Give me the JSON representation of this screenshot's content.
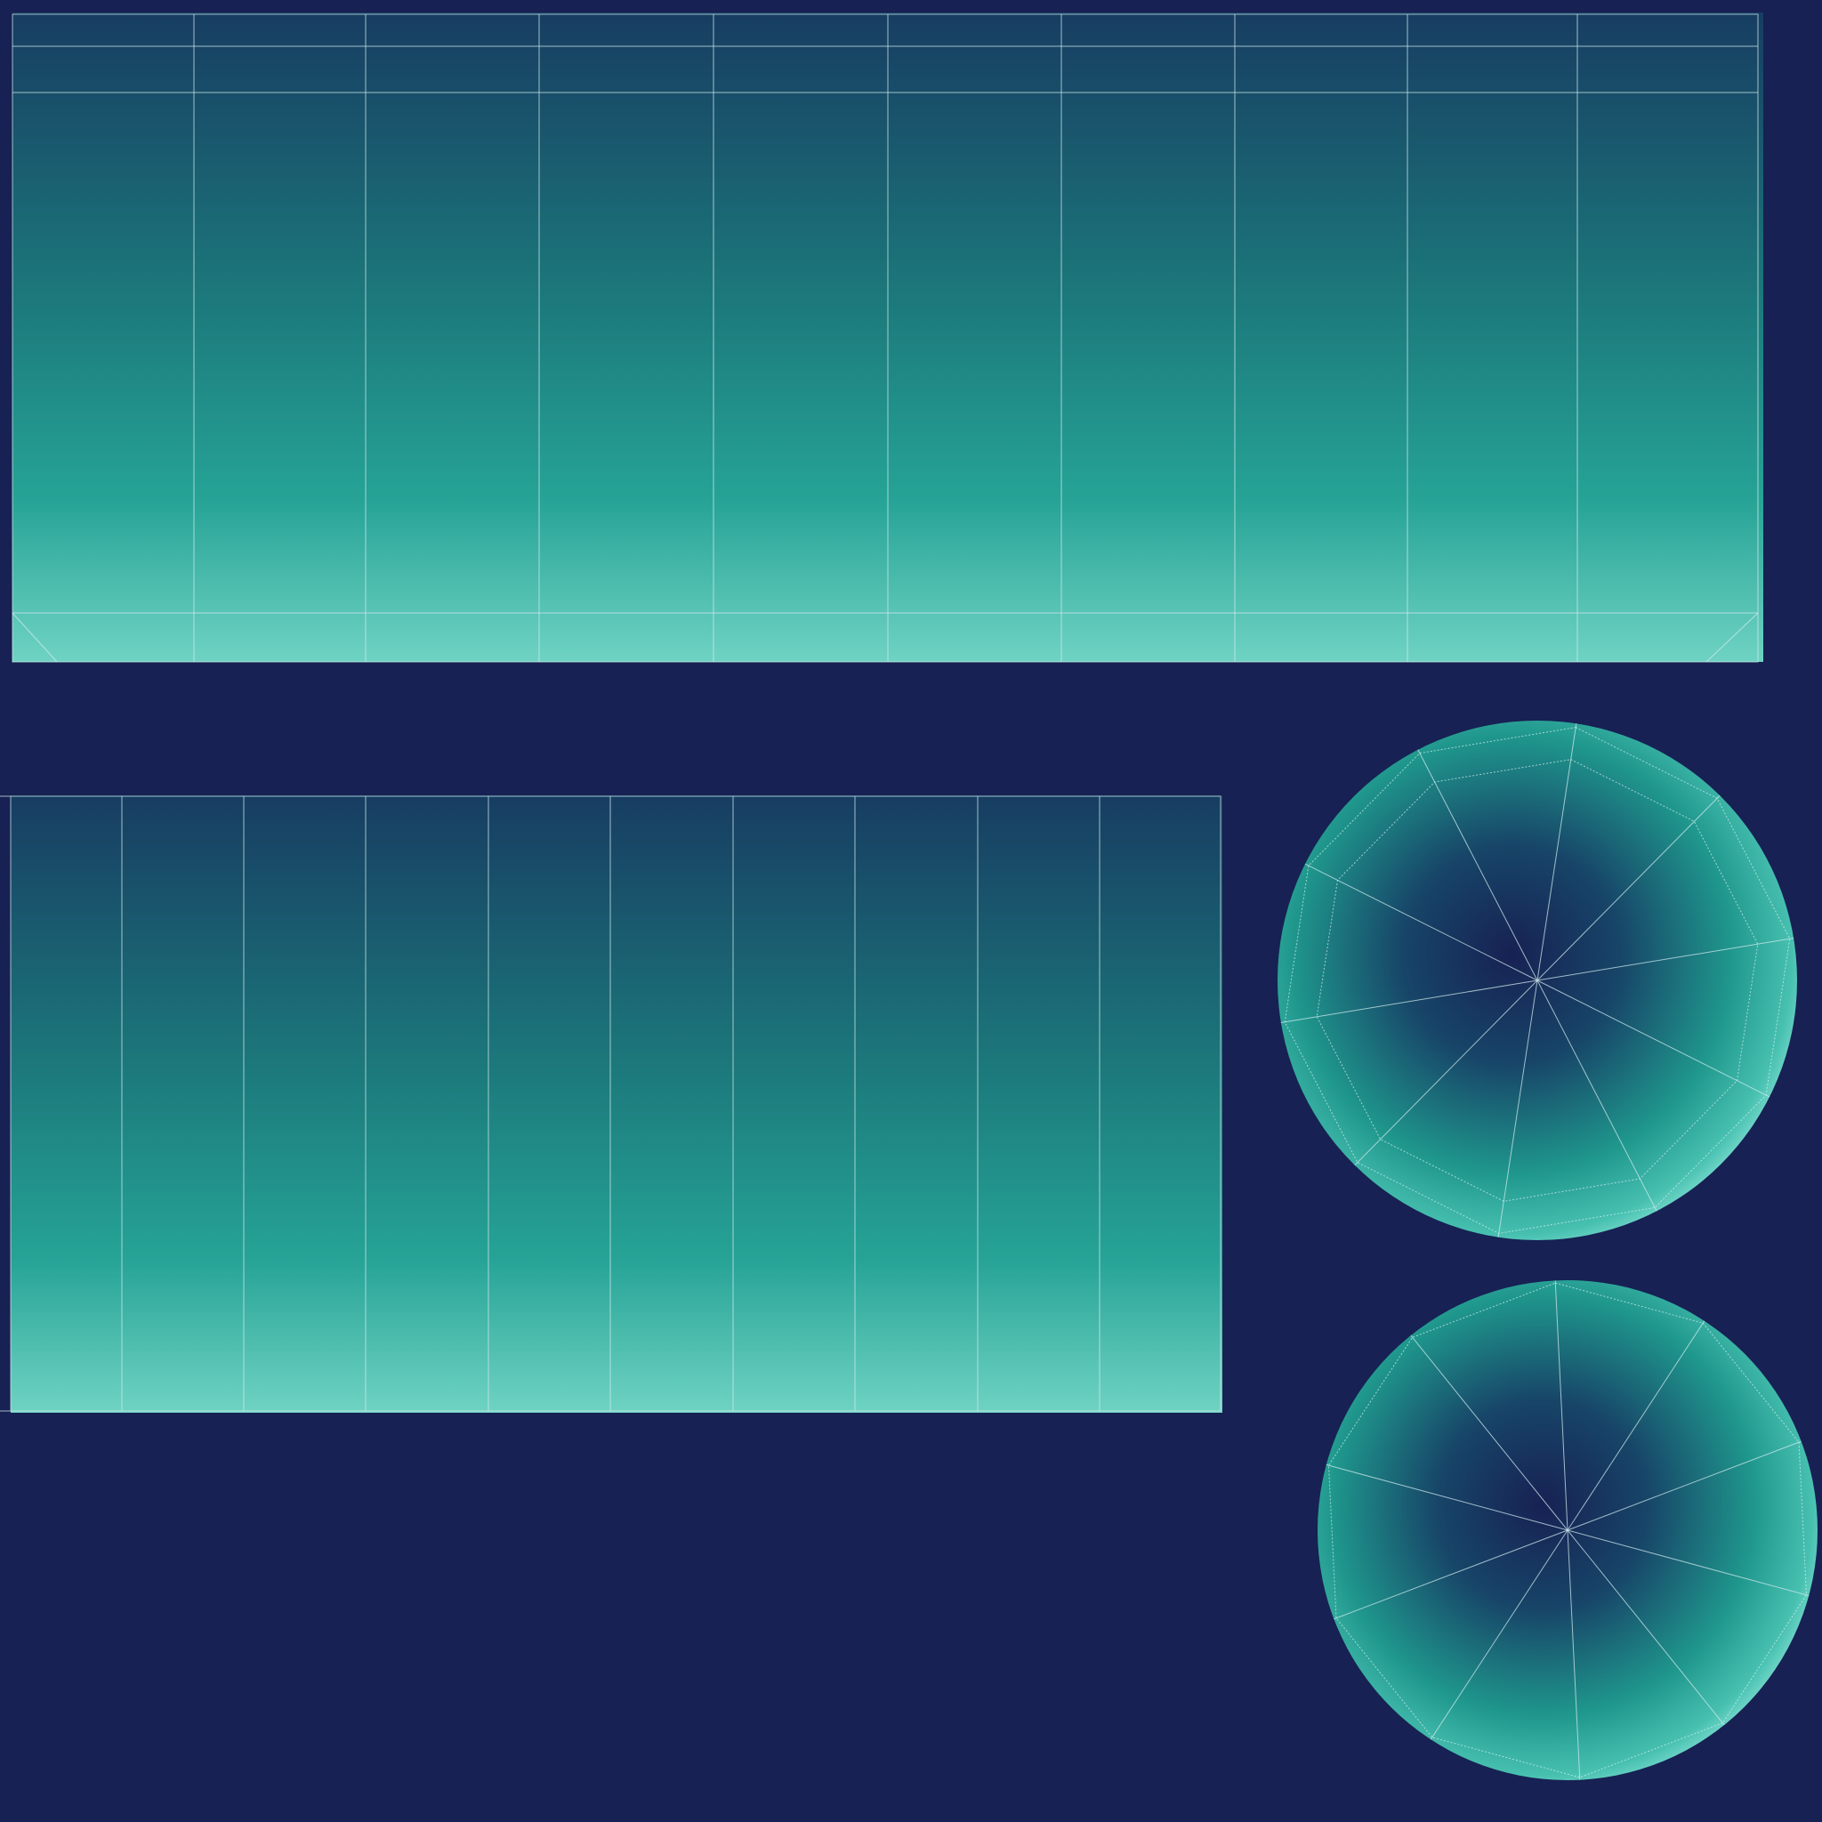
{
  "colors": {
    "background": "#172153",
    "gradient_dark": "#173d62",
    "gradient_mid": "#1f8d86",
    "gradient_light": "#6fd3c3",
    "disc_center": "#172153",
    "disc_edge": "#7fe0d4",
    "wireframe": "#cfe9ec"
  },
  "islands": {
    "side_strip_top": {
      "columns": 10,
      "kind": "cylinder-side"
    },
    "side_strip_bottom": {
      "columns": 10,
      "kind": "cylinder-side"
    },
    "cap_top": {
      "segments": 10,
      "kind": "cylinder-cap"
    },
    "cap_bottom": {
      "segments": 10,
      "kind": "cylinder-cap"
    }
  }
}
